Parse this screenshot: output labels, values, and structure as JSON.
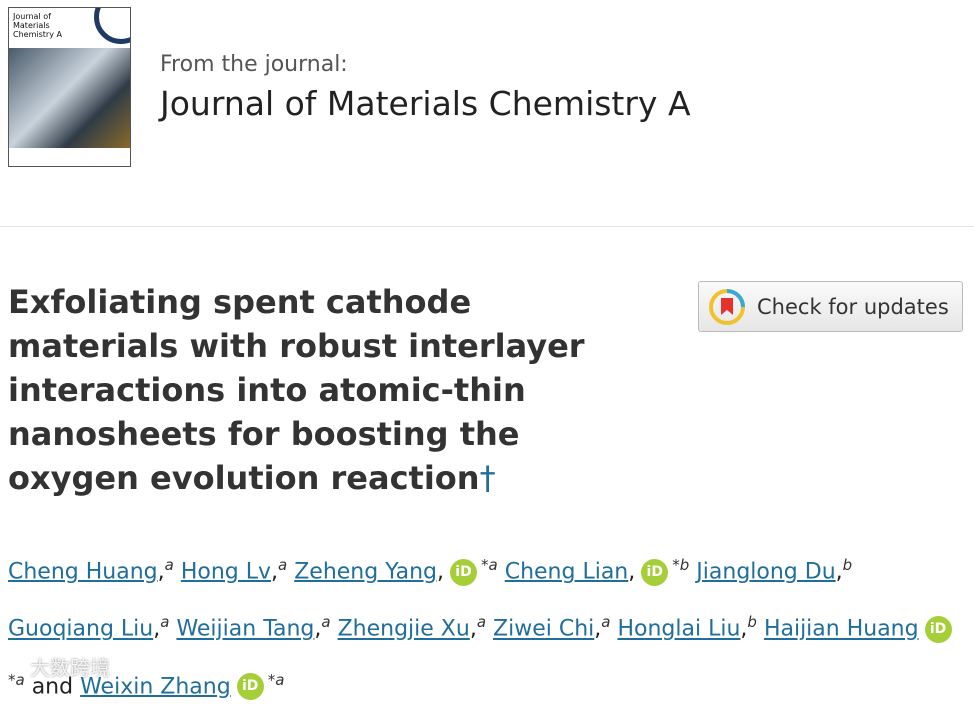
{
  "cover": {
    "title": "Journal of Materials Chemistry A"
  },
  "header": {
    "kicker": "From the journal:",
    "journal": "Journal of Materials Chemistry A"
  },
  "button": {
    "label": "Check for updates"
  },
  "article": {
    "title": "Exfoliating spent cathode materials with robust interlayer interactions into atomic-thin nanosheets for boosting the oxygen evolution reaction",
    "footnote": "†"
  },
  "authors": {
    "separator": ",",
    "conjunction": "and",
    "list": [
      {
        "name": "Cheng Huang",
        "sup": "a",
        "orcid": false
      },
      {
        "name": "Hong Lv",
        "sup": "a",
        "orcid": false
      },
      {
        "name": "Zeheng Yang",
        "sup": "*a",
        "orcid": true
      },
      {
        "name": "Cheng Lian",
        "sup": "*b",
        "orcid": true
      },
      {
        "name": "Jianglong Du",
        "sup": "b",
        "orcid": false
      },
      {
        "name": "Guoqiang Liu",
        "sup": "a",
        "orcid": false
      },
      {
        "name": "Weijian Tang",
        "sup": "a",
        "orcid": false
      },
      {
        "name": "Zhengjie Xu",
        "sup": "a",
        "orcid": false
      },
      {
        "name": "Ziwei Chi",
        "sup": "a",
        "orcid": false
      },
      {
        "name": "Honglai Liu",
        "sup": "b",
        "orcid": false
      },
      {
        "name": "Haijian Huang",
        "sup": "*a",
        "orcid": true
      },
      {
        "name": "Weixin Zhang",
        "sup": "*a",
        "orcid": true
      }
    ]
  },
  "watermark": "大数跨境"
}
